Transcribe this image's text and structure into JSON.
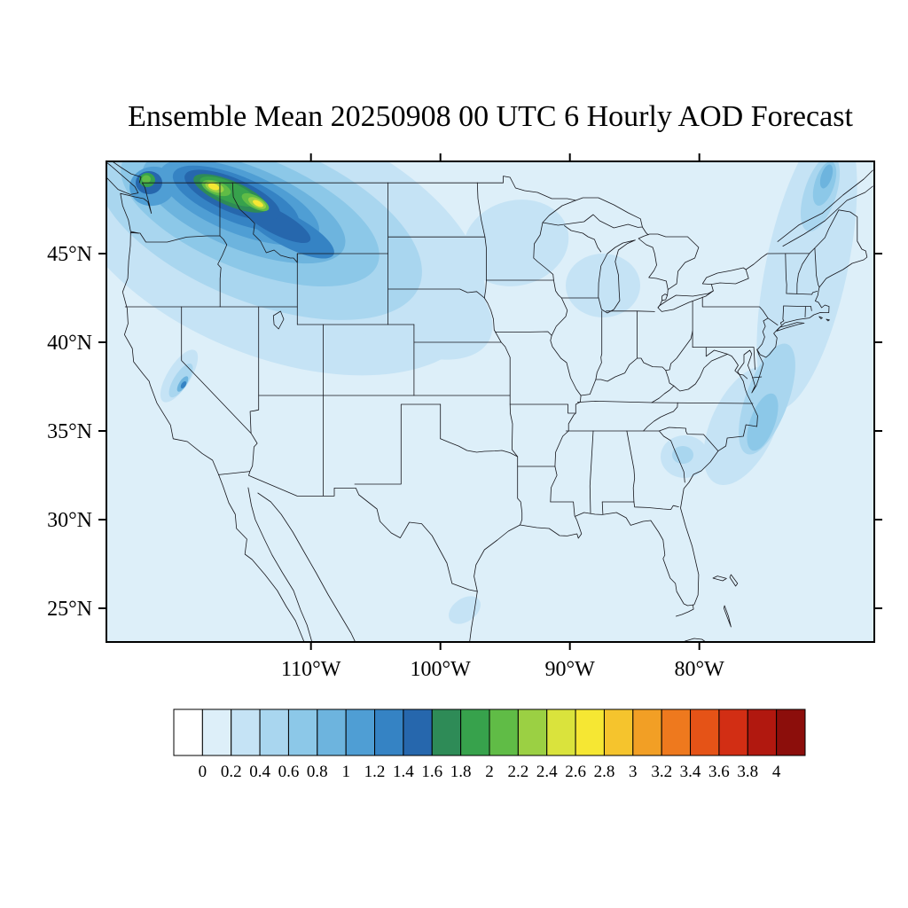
{
  "title": "Ensemble Mean 20250908 00 UTC 6 Hourly AOD Forecast",
  "axes": {
    "lat_ticks": [
      {
        "label": "45°N",
        "value": 45
      },
      {
        "label": "40°N",
        "value": 40
      },
      {
        "label": "35°N",
        "value": 35
      },
      {
        "label": "30°N",
        "value": 30
      },
      {
        "label": "25°N",
        "value": 25
      }
    ],
    "lon_ticks": [
      {
        "label": "110°W",
        "value": -110
      },
      {
        "label": "100°W",
        "value": -100
      },
      {
        "label": "90°W",
        "value": -90
      },
      {
        "label": "80°W",
        "value": -80
      }
    ]
  },
  "colorbar": {
    "levels": [
      "0",
      "0.2",
      "0.4",
      "0.6",
      "0.8",
      "1",
      "1.2",
      "1.4",
      "1.6",
      "1.8",
      "2",
      "2.2",
      "2.4",
      "2.6",
      "2.8",
      "3",
      "3.2",
      "3.4",
      "3.6",
      "3.8",
      "4"
    ],
    "colors": [
      "#ffffff",
      "#ddeff9",
      "#c5e3f5",
      "#a9d6ef",
      "#8cc8e8",
      "#6db4de",
      "#4f9ed4",
      "#3583c4",
      "#2667ad",
      "#2e8b57",
      "#37a24c",
      "#60bc46",
      "#9bd043",
      "#dae33c",
      "#f6e733",
      "#f5c42d",
      "#f29f25",
      "#ee791e",
      "#e55317",
      "#d22e14",
      "#b1180f",
      "#8c0e0b"
    ]
  },
  "chart_data": {
    "type": "heatmap",
    "subtype": "filled-contour-map",
    "title": "Ensemble Mean 20250908 00 UTC 6 Hourly AOD Forecast",
    "variable": "Aerosol Optical Depth (AOD), ensemble mean 6-hourly forecast",
    "region": "Contiguous United States with southern Canada and northern Mexico",
    "lon_range": [
      -125.8,
      -66.5
    ],
    "lat_range": [
      23.1,
      50.2
    ],
    "levels": [
      0,
      0.2,
      0.4,
      0.6,
      0.8,
      1,
      1.2,
      1.4,
      1.6,
      1.8,
      2,
      2.2,
      2.4,
      2.6,
      2.8,
      3,
      3.2,
      3.4,
      3.6,
      3.8,
      4
    ],
    "contour_interval": 0.2,
    "legend_position": "bottom",
    "grid": false,
    "features": [
      {
        "name": "Pacific Northwest smoke plume",
        "center_lon": -115.8,
        "center_lat": 48.0,
        "peak_aod": 2.8,
        "description": "Elongated plume from NE Washington across the Idaho panhandle into western Montana with two yellow cores (AOD 2.6-2.8), trailing dark-blue gradient southeast toward Wyoming"
      },
      {
        "name": "Northwest Washington coastal hotspot",
        "center_lon": -122.6,
        "center_lat": 49.0,
        "peak_aod": 2.2
      },
      {
        "name": "Sierra Nevada California plume",
        "center_lon": -120.0,
        "center_lat": 37.8,
        "peak_aod": 1.4
      },
      {
        "name": "Upper Midwest haze patch",
        "center_lon": -94.2,
        "center_lat": 45.6,
        "peak_aod": 0.4
      },
      {
        "name": "Lake Michigan haze patch",
        "center_lon": -86.8,
        "center_lat": 43.2,
        "peak_aod": 0.4
      },
      {
        "name": "Atlantic offshore haze band",
        "center_lon": -72.5,
        "center_lat": 38.0,
        "peak_aod": 1.0
      },
      {
        "name": "Carolinas offshore patch",
        "center_lon": -75.0,
        "center_lat": 35.3,
        "peak_aod": 0.8
      },
      {
        "name": "South Carolina inland patch",
        "center_lon": -81.4,
        "center_lat": 33.5,
        "peak_aod": 0.6
      },
      {
        "name": "Background",
        "peak_aod": 0.2,
        "description": "AOD 0-0.2 (pale blue) over most of the domain"
      }
    ]
  }
}
